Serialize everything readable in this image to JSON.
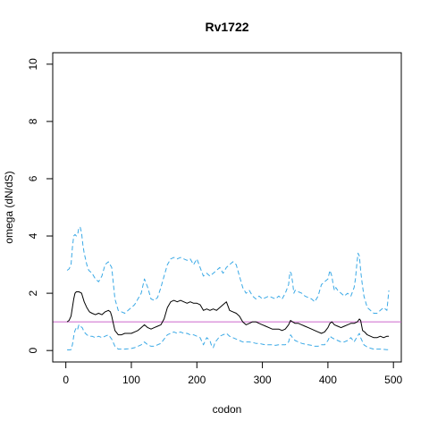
{
  "chart_data": {
    "type": "line",
    "title": "Rv1722",
    "xlabel": "codon",
    "ylabel": "omega (dN/dS)",
    "xlim": [
      -20,
      512
    ],
    "ylim": [
      -0.4,
      10.4
    ],
    "x_ticks": [
      "0",
      "100",
      "200",
      "300",
      "400",
      "500"
    ],
    "x_tick_values": [
      0,
      100,
      200,
      300,
      400,
      500
    ],
    "y_ticks": [
      "0",
      "2",
      "4",
      "6",
      "8",
      "10"
    ],
    "y_tick_values": [
      0,
      2,
      4,
      6,
      8,
      10
    ],
    "reference_line": {
      "y": 1,
      "color": "#cc66cc"
    },
    "grid": false,
    "series": [
      {
        "role": "upper",
        "color": "#3aa9e6",
        "style": "dashed",
        "x": [
          2,
          5,
          8,
          10,
          12,
          14,
          16,
          18,
          20,
          22,
          24,
          26,
          28,
          30,
          32,
          35,
          40,
          45,
          50,
          55,
          60,
          65,
          70,
          75,
          80,
          85,
          90,
          95,
          100,
          105,
          110,
          115,
          120,
          125,
          130,
          135,
          140,
          145,
          150,
          155,
          160,
          165,
          170,
          175,
          180,
          185,
          190,
          195,
          200,
          205,
          210,
          215,
          220,
          225,
          230,
          235,
          240,
          245,
          250,
          255,
          260,
          265,
          270,
          275,
          280,
          285,
          290,
          295,
          300,
          305,
          310,
          315,
          320,
          325,
          330,
          335,
          340,
          342,
          344,
          346,
          348,
          350,
          352,
          355,
          360,
          365,
          370,
          375,
          380,
          385,
          390,
          395,
          400,
          403,
          406,
          408,
          410,
          412,
          415,
          420,
          425,
          430,
          435,
          440,
          442,
          444,
          446,
          448,
          450,
          452,
          455,
          460,
          465,
          470,
          475,
          480,
          485,
          490,
          493
        ],
        "y": [
          2.8,
          2.85,
          3.0,
          3.6,
          4.0,
          4.05,
          4.0,
          4.05,
          4.3,
          4.3,
          4.1,
          3.7,
          3.4,
          3.2,
          3.0,
          2.8,
          2.7,
          2.5,
          2.4,
          2.6,
          3.0,
          3.1,
          2.9,
          1.8,
          1.4,
          1.35,
          1.3,
          1.4,
          1.5,
          1.6,
          1.8,
          2.0,
          2.5,
          2.2,
          1.8,
          1.75,
          1.85,
          2.2,
          2.6,
          3.0,
          3.2,
          3.25,
          3.2,
          3.25,
          3.2,
          3.15,
          3.2,
          3.0,
          3.2,
          2.9,
          2.6,
          2.7,
          2.6,
          2.7,
          2.8,
          2.9,
          2.7,
          2.9,
          3.0,
          3.1,
          3.0,
          2.6,
          2.2,
          2.0,
          2.1,
          1.9,
          1.8,
          1.9,
          1.8,
          1.85,
          1.9,
          1.85,
          1.8,
          1.9,
          1.8,
          2.0,
          2.3,
          2.75,
          2.7,
          2.4,
          2.0,
          2.1,
          2.1,
          2.05,
          2.0,
          1.9,
          1.85,
          1.8,
          1.7,
          1.9,
          2.3,
          2.4,
          2.5,
          2.8,
          2.6,
          2.3,
          2.1,
          2.2,
          2.1,
          2.0,
          1.9,
          2.0,
          1.9,
          2.2,
          2.5,
          3.0,
          3.4,
          3.3,
          2.8,
          2.4,
          1.9,
          1.5,
          1.4,
          1.3,
          1.3,
          1.4,
          1.5,
          1.4,
          2.1
        ]
      },
      {
        "role": "estimate",
        "color": "#000000",
        "style": "solid",
        "x": [
          2,
          5,
          8,
          10,
          12,
          14,
          16,
          20,
          24,
          28,
          32,
          36,
          40,
          45,
          50,
          55,
          60,
          65,
          68,
          70,
          72,
          75,
          80,
          85,
          90,
          95,
          100,
          105,
          110,
          115,
          120,
          125,
          130,
          135,
          140,
          145,
          150,
          155,
          160,
          165,
          170,
          175,
          180,
          185,
          190,
          195,
          200,
          205,
          210,
          215,
          220,
          225,
          230,
          235,
          240,
          245,
          250,
          255,
          260,
          265,
          270,
          275,
          280,
          285,
          290,
          295,
          300,
          305,
          310,
          315,
          320,
          325,
          330,
          335,
          340,
          343,
          346,
          350,
          355,
          360,
          365,
          370,
          375,
          380,
          385,
          390,
          395,
          400,
          403,
          406,
          410,
          415,
          420,
          425,
          430,
          435,
          440,
          445,
          448,
          450,
          453,
          456,
          460,
          465,
          470,
          475,
          480,
          485,
          490,
          493
        ],
        "y": [
          1.0,
          1.05,
          1.2,
          1.5,
          1.8,
          2.0,
          2.05,
          2.05,
          2.0,
          1.7,
          1.5,
          1.35,
          1.3,
          1.25,
          1.3,
          1.25,
          1.35,
          1.4,
          1.35,
          1.2,
          1.0,
          0.7,
          0.55,
          0.55,
          0.6,
          0.6,
          0.6,
          0.65,
          0.7,
          0.8,
          0.9,
          0.8,
          0.75,
          0.8,
          0.85,
          0.9,
          1.1,
          1.5,
          1.7,
          1.75,
          1.7,
          1.75,
          1.7,
          1.65,
          1.7,
          1.65,
          1.65,
          1.6,
          1.4,
          1.45,
          1.4,
          1.45,
          1.4,
          1.5,
          1.6,
          1.7,
          1.4,
          1.35,
          1.3,
          1.2,
          1.0,
          0.9,
          0.95,
          1.0,
          1.0,
          0.95,
          0.9,
          0.85,
          0.8,
          0.75,
          0.75,
          0.75,
          0.7,
          0.75,
          0.9,
          1.05,
          1.0,
          0.95,
          0.95,
          0.9,
          0.85,
          0.8,
          0.75,
          0.7,
          0.65,
          0.6,
          0.65,
          0.8,
          0.95,
          1.0,
          0.9,
          0.85,
          0.8,
          0.85,
          0.9,
          0.95,
          0.95,
          1.0,
          1.1,
          1.05,
          0.7,
          0.65,
          0.55,
          0.5,
          0.45,
          0.45,
          0.5,
          0.45,
          0.5,
          0.5
        ]
      },
      {
        "role": "lower",
        "color": "#3aa9e6",
        "style": "dashed",
        "x": [
          2,
          5,
          8,
          10,
          12,
          14,
          16,
          18,
          20,
          22,
          25,
          28,
          32,
          36,
          40,
          45,
          50,
          55,
          60,
          65,
          70,
          75,
          80,
          85,
          90,
          95,
          100,
          105,
          110,
          115,
          120,
          125,
          130,
          135,
          140,
          145,
          150,
          155,
          160,
          165,
          170,
          175,
          180,
          185,
          190,
          195,
          200,
          205,
          210,
          215,
          220,
          222,
          225,
          228,
          230,
          235,
          240,
          245,
          250,
          255,
          260,
          265,
          270,
          275,
          280,
          285,
          290,
          295,
          300,
          305,
          310,
          315,
          320,
          325,
          330,
          335,
          340,
          343,
          346,
          350,
          355,
          360,
          365,
          370,
          375,
          380,
          385,
          390,
          395,
          400,
          403,
          406,
          410,
          415,
          420,
          425,
          430,
          435,
          440,
          445,
          448,
          450,
          455,
          460,
          465,
          470,
          475,
          480,
          485,
          490,
          493
        ],
        "y": [
          0.02,
          0.02,
          0.03,
          0.2,
          0.5,
          0.7,
          0.8,
          0.75,
          0.9,
          0.85,
          0.8,
          0.65,
          0.55,
          0.5,
          0.5,
          0.45,
          0.5,
          0.45,
          0.5,
          0.55,
          0.4,
          0.15,
          0.05,
          0.05,
          0.05,
          0.06,
          0.07,
          0.1,
          0.15,
          0.2,
          0.3,
          0.2,
          0.15,
          0.15,
          0.2,
          0.25,
          0.4,
          0.55,
          0.6,
          0.65,
          0.6,
          0.65,
          0.6,
          0.6,
          0.55,
          0.55,
          0.5,
          0.45,
          0.2,
          0.45,
          0.35,
          0.2,
          0.1,
          0.3,
          0.35,
          0.5,
          0.55,
          0.6,
          0.5,
          0.45,
          0.4,
          0.35,
          0.3,
          0.3,
          0.3,
          0.28,
          0.25,
          0.25,
          0.22,
          0.2,
          0.2,
          0.2,
          0.18,
          0.2,
          0.2,
          0.2,
          0.3,
          0.55,
          0.45,
          0.35,
          0.3,
          0.25,
          0.22,
          0.2,
          0.18,
          0.15,
          0.15,
          0.2,
          0.2,
          0.35,
          0.5,
          0.45,
          0.4,
          0.35,
          0.3,
          0.3,
          0.35,
          0.45,
          0.3,
          0.5,
          0.6,
          0.45,
          0.2,
          0.12,
          0.08,
          0.05,
          0.05,
          0.05,
          0.04,
          0.03,
          0.03
        ]
      }
    ]
  }
}
